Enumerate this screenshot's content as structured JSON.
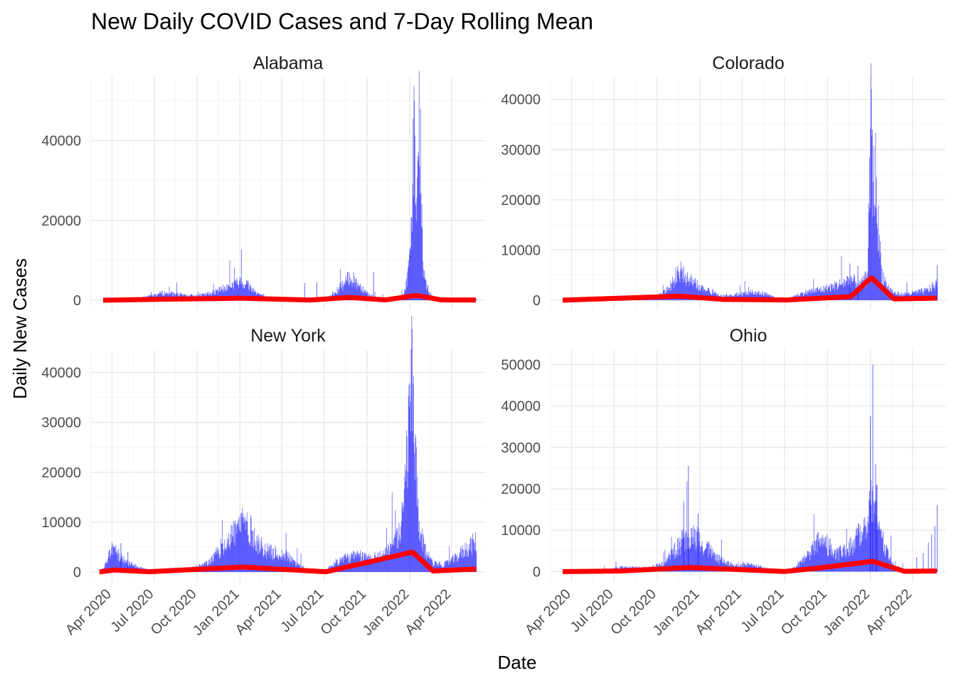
{
  "colors": {
    "bars": "#0000ff",
    "rolling_mean": "#ff0000",
    "grid_major": "#ebebeb",
    "grid_minor": "#f4f4f4"
  },
  "chart_data": {
    "type": "bar",
    "title": "New Daily COVID Cases and 7-Day Rolling Mean",
    "xlabel": "Date",
    "ylabel": "Daily New Cases",
    "x_ticks": [
      "2020-04-01",
      "2020-07-01",
      "2020-10-01",
      "2021-01-01",
      "2021-04-01",
      "2021-07-01",
      "2021-10-01",
      "2022-01-01",
      "2022-04-01"
    ],
    "x_tick_labels": [
      "Apr 2020",
      "Jul 2020",
      "Oct 2020",
      "Jan 2021",
      "Apr 2021",
      "Jul 2021",
      "Oct 2021",
      "Jan 2022",
      "Apr 2022"
    ],
    "x_range": [
      "2020-02-16",
      "2022-06-12"
    ],
    "series_names": [
      "Daily New Cases",
      "7-Day Rolling Mean"
    ],
    "legend": "none",
    "grid": true,
    "facets": [
      {
        "name": "Alabama",
        "ylim": [
          -2500,
          56000
        ],
        "y_ticks": [
          0,
          20000,
          40000
        ],
        "daily_cases": [
          [
            "2020-03-13",
            0
          ],
          [
            "2020-04-10",
            250
          ],
          [
            "2020-05-10",
            300
          ],
          [
            "2020-06-10",
            800
          ],
          [
            "2020-07-05",
            1500
          ],
          [
            "2020-07-20",
            2000
          ],
          [
            "2020-08-10",
            1700
          ],
          [
            "2020-09-10",
            1200
          ],
          [
            "2020-10-10",
            1300
          ],
          [
            "2020-11-01",
            1800
          ],
          [
            "2020-11-20",
            2800
          ],
          [
            "2020-12-10",
            3800
          ],
          [
            "2020-12-25",
            4500
          ],
          [
            "2021-01-05",
            4800
          ],
          [
            "2021-01-15",
            4500
          ],
          [
            "2021-02-01",
            2500
          ],
          [
            "2021-02-20",
            1000
          ],
          [
            "2021-03-15",
            500
          ],
          [
            "2021-04-01",
            300
          ],
          [
            "2021-05-01",
            250
          ],
          [
            "2021-06-01",
            150
          ],
          [
            "2021-07-01",
            300
          ],
          [
            "2021-07-15",
            1200
          ],
          [
            "2021-08-01",
            3000
          ],
          [
            "2021-08-15",
            4500
          ],
          [
            "2021-08-25",
            6500
          ],
          [
            "2021-09-05",
            5000
          ],
          [
            "2021-09-20",
            3500
          ],
          [
            "2021-10-05",
            1500
          ],
          [
            "2021-10-20",
            800
          ],
          [
            "2021-11-10",
            500
          ],
          [
            "2021-12-01",
            500
          ],
          [
            "2021-12-20",
            1500
          ],
          [
            "2021-12-27",
            6500
          ],
          [
            "2022-01-03",
            12000
          ],
          [
            "2022-01-10",
            51000
          ],
          [
            "2022-01-15",
            17000
          ],
          [
            "2022-01-22",
            53000
          ],
          [
            "2022-01-29",
            8000
          ],
          [
            "2022-02-08",
            3000
          ],
          [
            "2022-02-20",
            900
          ],
          [
            "2022-03-10",
            400
          ],
          [
            "2022-04-01",
            200
          ],
          [
            "2022-05-01",
            200
          ],
          [
            "2022-05-24",
            500
          ]
        ],
        "spikes": [
          [
            "2020-11-04",
            2500
          ],
          [
            "2021-05-20",
            4300
          ],
          [
            "2021-10-15",
            7000
          ],
          [
            "2021-06-15",
            4500
          ]
        ],
        "rolling_mean": [
          [
            "2020-03-13",
            0
          ],
          [
            "2020-07-20",
            250
          ],
          [
            "2021-01-05",
            500
          ],
          [
            "2021-06-01",
            50
          ],
          [
            "2021-08-25",
            700
          ],
          [
            "2021-11-10",
            80
          ],
          [
            "2022-01-15",
            1200
          ],
          [
            "2022-03-10",
            80
          ],
          [
            "2022-05-24",
            50
          ]
        ]
      },
      {
        "name": "Colorado",
        "ylim": [
          -2000,
          44500
        ],
        "y_ticks": [
          0,
          10000,
          20000,
          30000,
          40000
        ],
        "daily_cases": [
          [
            "2020-03-13",
            0
          ],
          [
            "2020-04-15",
            400
          ],
          [
            "2020-05-15",
            350
          ],
          [
            "2020-06-15",
            200
          ],
          [
            "2020-07-15",
            500
          ],
          [
            "2020-08-15",
            300
          ],
          [
            "2020-09-15",
            500
          ],
          [
            "2020-10-15",
            1500
          ],
          [
            "2020-10-30",
            3000
          ],
          [
            "2020-11-10",
            5000
          ],
          [
            "2020-11-20",
            6000
          ],
          [
            "2020-12-01",
            5000
          ],
          [
            "2020-12-20",
            3500
          ],
          [
            "2021-01-10",
            2500
          ],
          [
            "2021-02-01",
            1500
          ],
          [
            "2021-02-20",
            900
          ],
          [
            "2021-03-15",
            1200
          ],
          [
            "2021-04-05",
            1400
          ],
          [
            "2021-04-25",
            1800
          ],
          [
            "2021-05-15",
            1500
          ],
          [
            "2021-06-01",
            800
          ],
          [
            "2021-06-20",
            300
          ],
          [
            "2021-07-05",
            200
          ],
          [
            "2021-07-20",
            800
          ],
          [
            "2021-08-10",
            1500
          ],
          [
            "2021-09-01",
            2000
          ],
          [
            "2021-09-20",
            2300
          ],
          [
            "2021-10-10",
            2800
          ],
          [
            "2021-10-30",
            3500
          ],
          [
            "2021-11-20",
            4500
          ],
          [
            "2021-12-10",
            3000
          ],
          [
            "2021-12-25",
            5000
          ],
          [
            "2021-12-30",
            22000
          ],
          [
            "2022-01-03",
            42500
          ],
          [
            "2022-01-07",
            24000
          ],
          [
            "2022-01-12",
            27000
          ],
          [
            "2022-01-18",
            15000
          ],
          [
            "2022-01-25",
            6000
          ],
          [
            "2022-02-05",
            3000
          ],
          [
            "2022-02-20",
            1500
          ],
          [
            "2022-03-10",
            1200
          ],
          [
            "2022-04-01",
            1500
          ],
          [
            "2022-05-01",
            2000
          ],
          [
            "2022-05-24",
            3500
          ]
        ],
        "spikes": [
          [
            "2021-11-18",
            7300
          ],
          [
            "2021-12-05",
            6800
          ],
          [
            "2022-05-24",
            7000
          ],
          [
            "2022-03-20",
            3500
          ]
        ],
        "rolling_mean": [
          [
            "2020-03-13",
            0
          ],
          [
            "2020-11-20",
            800
          ],
          [
            "2021-02-20",
            150
          ],
          [
            "2021-07-05",
            40
          ],
          [
            "2021-11-20",
            700
          ],
          [
            "2022-01-03",
            4500
          ],
          [
            "2022-02-20",
            250
          ],
          [
            "2022-05-24",
            400
          ]
        ]
      },
      {
        "name": "New York",
        "ylim": [
          -2000,
          44500
        ],
        "y_ticks": [
          0,
          10000,
          20000,
          30000,
          40000
        ],
        "daily_cases": [
          [
            "2020-03-05",
            0
          ],
          [
            "2020-03-15",
            1000
          ],
          [
            "2020-03-25",
            3500
          ],
          [
            "2020-04-01",
            5000
          ],
          [
            "2020-04-10",
            4500
          ],
          [
            "2020-04-20",
            3000
          ],
          [
            "2020-05-10",
            1800
          ],
          [
            "2020-06-01",
            800
          ],
          [
            "2020-06-20",
            500
          ],
          [
            "2020-07-15",
            600
          ],
          [
            "2020-08-15",
            700
          ],
          [
            "2020-09-15",
            800
          ],
          [
            "2020-10-15",
            1500
          ],
          [
            "2020-11-01",
            2500
          ],
          [
            "2020-11-20",
            5000
          ],
          [
            "2020-12-15",
            8000
          ],
          [
            "2021-01-01",
            10000
          ],
          [
            "2021-01-08",
            11500
          ],
          [
            "2021-01-20",
            9500
          ],
          [
            "2021-02-10",
            6000
          ],
          [
            "2021-03-01",
            4500
          ],
          [
            "2021-03-20",
            4000
          ],
          [
            "2021-04-10",
            3500
          ],
          [
            "2021-04-30",
            2000
          ],
          [
            "2021-05-20",
            800
          ],
          [
            "2021-06-10",
            300
          ],
          [
            "2021-07-05",
            500
          ],
          [
            "2021-07-25",
            2000
          ],
          [
            "2021-08-15",
            3000
          ],
          [
            "2021-09-10",
            3500
          ],
          [
            "2021-10-10",
            3000
          ],
          [
            "2021-11-01",
            3500
          ],
          [
            "2021-11-25",
            5500
          ],
          [
            "2021-12-10",
            8000
          ],
          [
            "2021-12-20",
            14000
          ],
          [
            "2021-12-28",
            30000
          ],
          [
            "2022-01-03",
            38000
          ],
          [
            "2022-01-07",
            42000
          ],
          [
            "2022-01-12",
            25000
          ],
          [
            "2022-01-20",
            10000
          ],
          [
            "2022-02-01",
            5000
          ],
          [
            "2022-02-20",
            2000
          ],
          [
            "2022-03-15",
            1500
          ],
          [
            "2022-04-10",
            3000
          ],
          [
            "2022-05-01",
            5000
          ],
          [
            "2022-05-24",
            6500
          ]
        ],
        "spikes": [
          [
            "2020-04-20",
            5800
          ],
          [
            "2020-05-05",
            4000
          ]
        ],
        "rolling_mean": [
          [
            "2020-03-05",
            0
          ],
          [
            "2020-04-05",
            400
          ],
          [
            "2020-06-20",
            50
          ],
          [
            "2021-01-08",
            1000
          ],
          [
            "2021-07-05",
            40
          ],
          [
            "2022-01-07",
            4000
          ],
          [
            "2022-02-20",
            200
          ],
          [
            "2022-05-24",
            600
          ]
        ]
      },
      {
        "name": "Ohio",
        "ylim": [
          -2500,
          53500
        ],
        "y_ticks": [
          0,
          10000,
          20000,
          30000,
          40000,
          50000
        ],
        "daily_cases": [
          [
            "2020-03-13",
            0
          ],
          [
            "2020-04-10",
            500
          ],
          [
            "2020-05-10",
            500
          ],
          [
            "2020-06-10",
            500
          ],
          [
            "2020-07-15",
            1200
          ],
          [
            "2020-08-15",
            1000
          ],
          [
            "2020-09-15",
            1000
          ],
          [
            "2020-10-15",
            2000
          ],
          [
            "2020-11-05",
            5000
          ],
          [
            "2020-11-25",
            8000
          ],
          [
            "2020-12-10",
            9000
          ],
          [
            "2020-12-25",
            8500
          ],
          [
            "2021-01-10",
            7000
          ],
          [
            "2021-02-01",
            4000
          ],
          [
            "2021-02-20",
            2500
          ],
          [
            "2021-03-15",
            1500
          ],
          [
            "2021-04-10",
            2000
          ],
          [
            "2021-05-01",
            1500
          ],
          [
            "2021-06-01",
            500
          ],
          [
            "2021-07-01",
            300
          ],
          [
            "2021-07-20",
            1000
          ],
          [
            "2021-08-15",
            3500
          ],
          [
            "2021-09-01",
            6000
          ],
          [
            "2021-09-15",
            8000
          ],
          [
            "2021-10-01",
            7000
          ],
          [
            "2021-10-20",
            4500
          ],
          [
            "2021-11-10",
            5500
          ],
          [
            "2021-12-01",
            8000
          ],
          [
            "2021-12-20",
            12000
          ],
          [
            "2022-01-01",
            20000
          ],
          [
            "2022-01-10",
            19000
          ],
          [
            "2022-01-18",
            14000
          ],
          [
            "2022-02-01",
            6000
          ],
          [
            "2022-02-20",
            1500
          ],
          [
            "2022-03-15",
            500
          ],
          [
            "2022-04-15",
            200
          ],
          [
            "2022-05-24",
            500
          ]
        ],
        "spikes": [
          [
            "2020-12-07",
            25500
          ],
          [
            "2020-11-27",
            17000
          ],
          [
            "2020-12-28",
            14000
          ],
          [
            "2022-01-01",
            37500
          ],
          [
            "2022-01-06",
            50000
          ],
          [
            "2022-01-12",
            26000
          ],
          [
            "2022-01-15",
            21000
          ],
          [
            "2022-04-10",
            3500
          ],
          [
            "2022-04-24",
            4500
          ],
          [
            "2022-05-05",
            7000
          ],
          [
            "2022-05-12",
            9000
          ],
          [
            "2022-05-19",
            11000
          ],
          [
            "2022-05-24",
            16000
          ]
        ],
        "rolling_mean": [
          [
            "2020-03-13",
            0
          ],
          [
            "2020-07-15",
            150
          ],
          [
            "2020-12-10",
            1000
          ],
          [
            "2021-07-01",
            30
          ],
          [
            "2021-09-15",
            900
          ],
          [
            "2022-01-06",
            2500
          ],
          [
            "2022-03-15",
            70
          ],
          [
            "2022-05-24",
            150
          ]
        ]
      }
    ]
  }
}
